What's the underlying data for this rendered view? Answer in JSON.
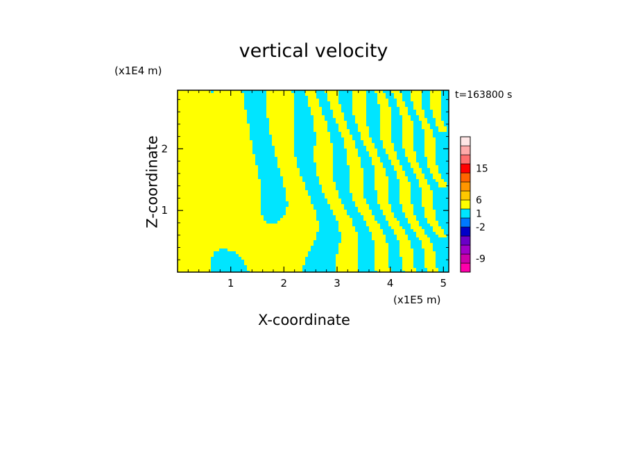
{
  "chart_data": {
    "type": "heatmap",
    "title": "vertical velocity",
    "xlabel": "X-coordinate",
    "ylabel": "Z-coordinate",
    "x_multiplier": "(x1E5 m)",
    "z_multiplier": "(x1E4 m)",
    "time_label": "t=163800  s",
    "x_ticks": [
      "1",
      "2",
      "3",
      "4",
      "5"
    ],
    "y_ticks": [
      "1",
      "2"
    ],
    "xlim": [
      0,
      5.1
    ],
    "ylim": [
      0,
      2.95
    ],
    "field_colors": {
      "positive": "#ffff00",
      "negative": "#00e5ff"
    },
    "colorbar": {
      "levels": [
        "-9",
        "-2",
        "1",
        "6",
        "15"
      ],
      "bands": [
        "#ff00aa",
        "#cc00aa",
        "#a000c8",
        "#6a00c8",
        "#0000c8",
        "#0078ff",
        "#00e5ff",
        "#ffff00",
        "#ffc800",
        "#ff9600",
        "#ff6400",
        "#ff0000",
        "#ff6e6e",
        "#ffaaaa",
        "#ffe6e6"
      ]
    }
  }
}
